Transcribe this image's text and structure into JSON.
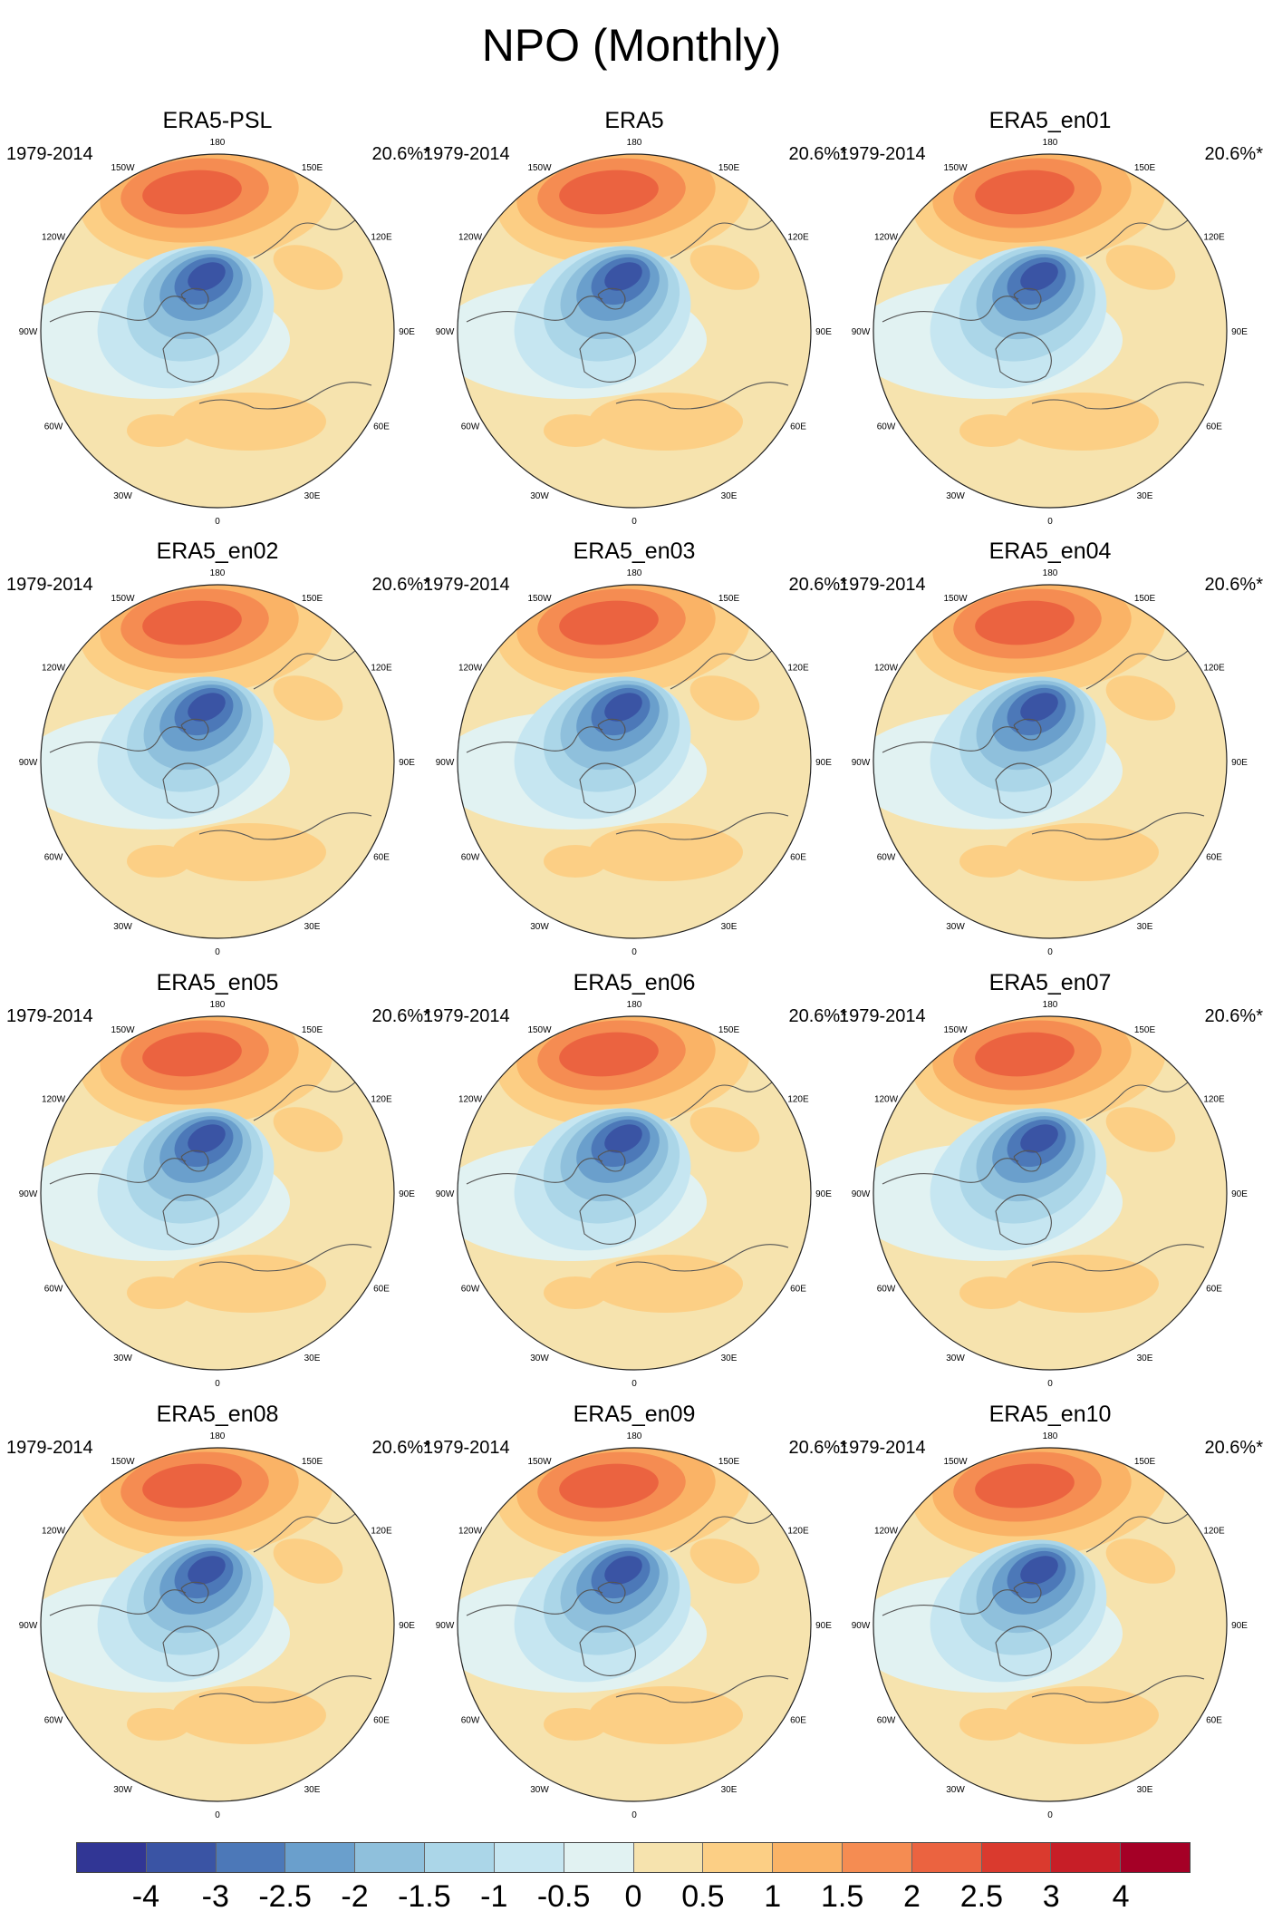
{
  "figure": {
    "title": "NPO (Monthly)",
    "period_label": "1979-2014",
    "variance_label": "20.6%*"
  },
  "panels": [
    {
      "title": "ERA5-PSL"
    },
    {
      "title": "ERA5"
    },
    {
      "title": "ERA5_en01"
    },
    {
      "title": "ERA5_en02"
    },
    {
      "title": "ERA5_en03"
    },
    {
      "title": "ERA5_en04"
    },
    {
      "title": "ERA5_en05"
    },
    {
      "title": "ERA5_en06"
    },
    {
      "title": "ERA5_en07"
    },
    {
      "title": "ERA5_en08"
    },
    {
      "title": "ERA5_en09"
    },
    {
      "title": "ERA5_en10"
    }
  ],
  "map_labels": [
    "180",
    "150E",
    "120E",
    "90E",
    "60E",
    "30E",
    "0",
    "30W",
    "60W",
    "90W",
    "120W",
    "150W"
  ],
  "colorbar": {
    "colors": [
      "#313695",
      "#3a54a4",
      "#4c78b8",
      "#6a9fcc",
      "#8fc0dc",
      "#abd6e8",
      "#c6e6f1",
      "#e1f2f2",
      "#f6e3ae",
      "#fccf85",
      "#fab366",
      "#f58c52",
      "#eb6340",
      "#da3a2e",
      "#c71e27",
      "#a50026"
    ],
    "labels": [
      "-4",
      "-3",
      "-2.5",
      "-2",
      "-1.5",
      "-1",
      "-0.5",
      "0",
      "0.5",
      "1",
      "1.5",
      "2",
      "2.5",
      "3",
      "4"
    ]
  }
}
